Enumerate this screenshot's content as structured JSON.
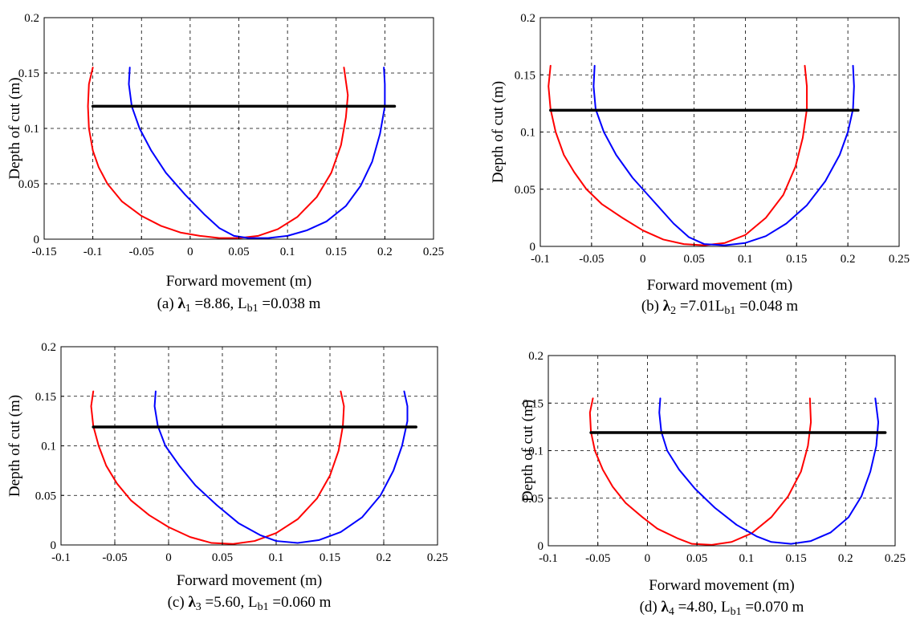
{
  "chart_data": [
    {
      "type": "line",
      "caption": {
        "prefix": "(a) ",
        "lambda": "λ",
        "lambda_sub": "1",
        "lambda_value": " =8.86, ",
        "l": "L",
        "l_sub": "b1",
        "l_value": " =0.038 m"
      },
      "xlabel": "Forward movement (m)",
      "ylabel": "Depth of cut (m)",
      "xlim": [
        -0.15,
        0.25
      ],
      "ylim": [
        0,
        0.2
      ],
      "xticks": [
        -0.15,
        -0.1,
        -0.05,
        0,
        0.05,
        0.1,
        0.15,
        0.2,
        0.25
      ],
      "xtick_labels": [
        "-0.15",
        "-0.1",
        "-0.05",
        "0",
        "0.05",
        "0.1",
        "0.15",
        "0.2",
        "0.25"
      ],
      "yticks": [
        0,
        0.05,
        0.1,
        0.15,
        0.2
      ],
      "ytick_labels": [
        "0",
        "0.05",
        "0.1",
        "0.15",
        "0.2"
      ],
      "grid": true,
      "series": [
        {
          "color": "#ff0000",
          "points": [
            [
              -0.1,
              0.155
            ],
            [
              -0.104,
              0.14
            ],
            [
              -0.105,
              0.12
            ],
            [
              -0.104,
              0.1
            ],
            [
              -0.1,
              0.08
            ],
            [
              -0.094,
              0.065
            ],
            [
              -0.085,
              0.05
            ],
            [
              -0.07,
              0.034
            ],
            [
              -0.05,
              0.021
            ],
            [
              -0.03,
              0.012
            ],
            [
              -0.01,
              0.006
            ],
            [
              0.01,
              0.003
            ],
            [
              0.03,
              0.001
            ],
            [
              0.05,
              0.001
            ],
            [
              0.07,
              0.003
            ],
            [
              0.09,
              0.009
            ],
            [
              0.11,
              0.02
            ],
            [
              0.13,
              0.038
            ],
            [
              0.145,
              0.06
            ],
            [
              0.155,
              0.085
            ],
            [
              0.16,
              0.11
            ],
            [
              0.162,
              0.13
            ],
            [
              0.158,
              0.155
            ]
          ]
        },
        {
          "color": "#0000ff",
          "points": [
            [
              -0.062,
              0.155
            ],
            [
              -0.063,
              0.14
            ],
            [
              -0.06,
              0.12
            ],
            [
              -0.052,
              0.1
            ],
            [
              -0.04,
              0.08
            ],
            [
              -0.025,
              0.06
            ],
            [
              -0.005,
              0.04
            ],
            [
              0.015,
              0.022
            ],
            [
              0.03,
              0.01
            ],
            [
              0.045,
              0.003
            ],
            [
              0.06,
              0.001
            ],
            [
              0.08,
              0.001
            ],
            [
              0.1,
              0.003
            ],
            [
              0.12,
              0.008
            ],
            [
              0.14,
              0.016
            ],
            [
              0.16,
              0.03
            ],
            [
              0.175,
              0.048
            ],
            [
              0.187,
              0.07
            ],
            [
              0.195,
              0.095
            ],
            [
              0.2,
              0.12
            ],
            [
              0.2,
              0.14
            ],
            [
              0.199,
              0.155
            ]
          ]
        },
        {
          "color": "#000000",
          "points": [
            [
              -0.1,
              0.12
            ],
            [
              0.21,
              0.12
            ]
          ]
        }
      ]
    },
    {
      "type": "line",
      "caption": {
        "prefix": "(b) ",
        "lambda": "λ",
        "lambda_sub": "2",
        "lambda_value": " =7.01",
        "l": "L",
        "l_sub": "b1",
        "l_value": " =0.048 m"
      },
      "xlabel": "Forward movement (m)",
      "ylabel": "Depth of cut (m)",
      "xlim": [
        -0.1,
        0.25
      ],
      "ylim": [
        0,
        0.2
      ],
      "xticks": [
        -0.1,
        -0.05,
        0,
        0.05,
        0.1,
        0.15,
        0.2,
        0.25
      ],
      "xtick_labels": [
        "-0.1",
        "-0.05",
        "0",
        "0.05",
        "0.1",
        "0.15",
        "0.2",
        "0.25"
      ],
      "yticks": [
        0,
        0.05,
        0.1,
        0.15,
        0.2
      ],
      "ytick_labels": [
        "0",
        "0.05",
        "0.1",
        "0.15",
        "0.2"
      ],
      "grid": true,
      "series": [
        {
          "color": "#ff0000",
          "points": [
            [
              -0.09,
              0.158
            ],
            [
              -0.092,
              0.14
            ],
            [
              -0.09,
              0.12
            ],
            [
              -0.085,
              0.1
            ],
            [
              -0.077,
              0.08
            ],
            [
              -0.067,
              0.065
            ],
            [
              -0.055,
              0.05
            ],
            [
              -0.04,
              0.037
            ],
            [
              -0.02,
              0.025
            ],
            [
              0,
              0.014
            ],
            [
              0.02,
              0.006
            ],
            [
              0.04,
              0.002
            ],
            [
              0.06,
              0.001
            ],
            [
              0.08,
              0.003
            ],
            [
              0.1,
              0.01
            ],
            [
              0.12,
              0.025
            ],
            [
              0.137,
              0.045
            ],
            [
              0.149,
              0.07
            ],
            [
              0.156,
              0.095
            ],
            [
              0.16,
              0.12
            ],
            [
              0.16,
              0.14
            ],
            [
              0.158,
              0.158
            ]
          ]
        },
        {
          "color": "#0000ff",
          "points": [
            [
              -0.047,
              0.158
            ],
            [
              -0.048,
              0.14
            ],
            [
              -0.046,
              0.12
            ],
            [
              -0.038,
              0.1
            ],
            [
              -0.026,
              0.08
            ],
            [
              -0.01,
              0.06
            ],
            [
              0.01,
              0.04
            ],
            [
              0.03,
              0.02
            ],
            [
              0.045,
              0.008
            ],
            [
              0.06,
              0.002
            ],
            [
              0.08,
              0.001
            ],
            [
              0.1,
              0.003
            ],
            [
              0.12,
              0.009
            ],
            [
              0.14,
              0.02
            ],
            [
              0.16,
              0.036
            ],
            [
              0.178,
              0.057
            ],
            [
              0.192,
              0.08
            ],
            [
              0.2,
              0.1
            ],
            [
              0.205,
              0.12
            ],
            [
              0.206,
              0.14
            ],
            [
              0.205,
              0.158
            ]
          ]
        },
        {
          "color": "#000000",
          "points": [
            [
              -0.09,
              0.119
            ],
            [
              0.21,
              0.119
            ]
          ]
        }
      ]
    },
    {
      "type": "line",
      "caption": {
        "prefix": "(c) ",
        "lambda": "λ",
        "lambda_sub": "3",
        "lambda_value": " =5.60, ",
        "l": "L",
        "l_sub": "b1",
        "l_value": " =0.060 m"
      },
      "xlabel": "Forward movement (m)",
      "ylabel": "Depth of cut (m)",
      "xlim": [
        -0.1,
        0.25
      ],
      "ylim": [
        0,
        0.2
      ],
      "xticks": [
        -0.1,
        -0.05,
        0,
        0.05,
        0.1,
        0.15,
        0.2,
        0.25
      ],
      "xtick_labels": [
        "-0.1",
        "-0.05",
        "0",
        "0.05",
        "0.1",
        "0.15",
        "0.2",
        "0.25"
      ],
      "yticks": [
        0,
        0.05,
        0.1,
        0.15,
        0.2
      ],
      "ytick_labels": [
        "0",
        "0.05",
        "0.1",
        "0.15",
        "0.2"
      ],
      "grid": true,
      "series": [
        {
          "color": "#ff0000",
          "points": [
            [
              -0.07,
              0.155
            ],
            [
              -0.072,
              0.14
            ],
            [
              -0.07,
              0.12
            ],
            [
              -0.065,
              0.1
            ],
            [
              -0.058,
              0.08
            ],
            [
              -0.048,
              0.062
            ],
            [
              -0.035,
              0.045
            ],
            [
              -0.018,
              0.03
            ],
            [
              0,
              0.018
            ],
            [
              0.02,
              0.008
            ],
            [
              0.04,
              0.002
            ],
            [
              0.06,
              0.001
            ],
            [
              0.08,
              0.004
            ],
            [
              0.1,
              0.012
            ],
            [
              0.12,
              0.026
            ],
            [
              0.138,
              0.047
            ],
            [
              0.15,
              0.07
            ],
            [
              0.158,
              0.095
            ],
            [
              0.162,
              0.12
            ],
            [
              0.163,
              0.14
            ],
            [
              0.16,
              0.155
            ]
          ]
        },
        {
          "color": "#0000ff",
          "points": [
            [
              -0.012,
              0.155
            ],
            [
              -0.013,
              0.14
            ],
            [
              -0.01,
              0.12
            ],
            [
              -0.003,
              0.1
            ],
            [
              0.01,
              0.08
            ],
            [
              0.025,
              0.06
            ],
            [
              0.045,
              0.04
            ],
            [
              0.065,
              0.022
            ],
            [
              0.085,
              0.01
            ],
            [
              0.1,
              0.004
            ],
            [
              0.12,
              0.002
            ],
            [
              0.14,
              0.005
            ],
            [
              0.16,
              0.013
            ],
            [
              0.18,
              0.028
            ],
            [
              0.197,
              0.05
            ],
            [
              0.209,
              0.075
            ],
            [
              0.217,
              0.1
            ],
            [
              0.222,
              0.125
            ],
            [
              0.222,
              0.14
            ],
            [
              0.219,
              0.155
            ]
          ]
        },
        {
          "color": "#000000",
          "points": [
            [
              -0.07,
              0.119
            ],
            [
              0.23,
              0.119
            ]
          ]
        }
      ]
    },
    {
      "type": "line",
      "caption": {
        "prefix": "(d) ",
        "lambda": "λ",
        "lambda_sub": "4",
        "lambda_value": " =4.80, ",
        "l": "L",
        "l_sub": "b1",
        "l_value": " =0.070 m"
      },
      "xlabel": "Forward movement (m)",
      "ylabel": "Depth of cut (m)",
      "xlim": [
        -0.1,
        0.25
      ],
      "ylim": [
        0,
        0.2
      ],
      "xticks": [
        -0.1,
        -0.05,
        0,
        0.05,
        0.1,
        0.15,
        0.2,
        0.25
      ],
      "xtick_labels": [
        "-0.1",
        "-0.05",
        "0",
        "0.05",
        "0.1",
        "0.15",
        "0.2",
        "0.25"
      ],
      "yticks": [
        0,
        0.05,
        0.1,
        0.15,
        0.2
      ],
      "ytick_labels": [
        "0",
        "0.05",
        "0.1",
        "0.15",
        "0.2"
      ],
      "grid": true,
      "series": [
        {
          "color": "#ff0000",
          "points": [
            [
              -0.055,
              0.155
            ],
            [
              -0.058,
              0.14
            ],
            [
              -0.057,
              0.12
            ],
            [
              -0.053,
              0.1
            ],
            [
              -0.045,
              0.08
            ],
            [
              -0.035,
              0.062
            ],
            [
              -0.022,
              0.045
            ],
            [
              -0.005,
              0.03
            ],
            [
              0.01,
              0.018
            ],
            [
              0.03,
              0.008
            ],
            [
              0.045,
              0.002
            ],
            [
              0.065,
              0.001
            ],
            [
              0.085,
              0.004
            ],
            [
              0.105,
              0.013
            ],
            [
              0.125,
              0.03
            ],
            [
              0.142,
              0.052
            ],
            [
              0.155,
              0.078
            ],
            [
              0.162,
              0.105
            ],
            [
              0.165,
              0.13
            ],
            [
              0.164,
              0.155
            ]
          ]
        },
        {
          "color": "#0000ff",
          "points": [
            [
              0.013,
              0.155
            ],
            [
              0.012,
              0.14
            ],
            [
              0.014,
              0.12
            ],
            [
              0.02,
              0.1
            ],
            [
              0.032,
              0.08
            ],
            [
              0.048,
              0.06
            ],
            [
              0.068,
              0.04
            ],
            [
              0.09,
              0.022
            ],
            [
              0.11,
              0.01
            ],
            [
              0.125,
              0.004
            ],
            [
              0.145,
              0.002
            ],
            [
              0.165,
              0.005
            ],
            [
              0.185,
              0.014
            ],
            [
              0.203,
              0.03
            ],
            [
              0.216,
              0.052
            ],
            [
              0.225,
              0.078
            ],
            [
              0.231,
              0.105
            ],
            [
              0.233,
              0.13
            ],
            [
              0.23,
              0.155
            ]
          ]
        },
        {
          "color": "#000000",
          "points": [
            [
              -0.057,
              0.119
            ],
            [
              0.24,
              0.119
            ]
          ]
        }
      ]
    }
  ]
}
